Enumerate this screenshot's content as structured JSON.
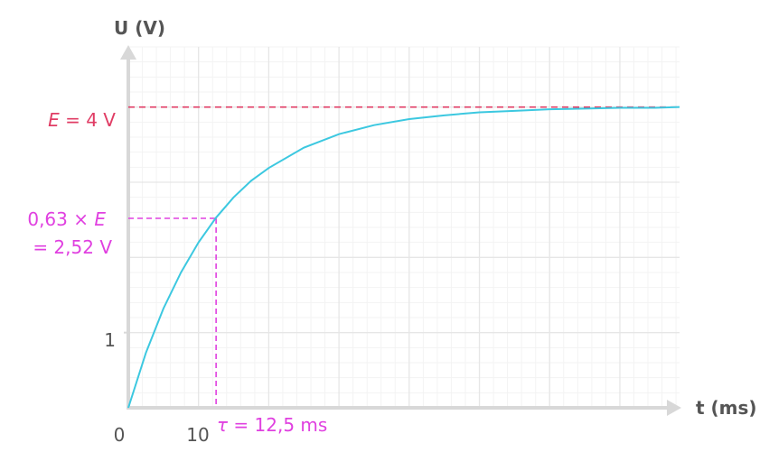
{
  "chart_data": {
    "type": "line",
    "y_axis_label": "U (V)",
    "x_axis_label": "t (ms)",
    "y_ticks": [
      {
        "value": 1,
        "label": "1"
      }
    ],
    "x_ticks": [
      {
        "value": 0,
        "label": "0"
      },
      {
        "value": 10,
        "label": "10"
      }
    ],
    "xlim": [
      0,
      78.5
    ],
    "ylim": [
      0,
      4.8
    ],
    "grid": true,
    "series": [
      {
        "color": "#3cc8e0",
        "x": [
          0,
          2.5,
          5,
          7.5,
          10,
          12.5,
          15,
          17.5,
          20,
          25,
          30,
          35,
          40,
          45,
          50,
          55,
          60,
          65,
          70,
          75,
          78.5
        ],
        "y": [
          0,
          0.73,
          1.32,
          1.8,
          2.2,
          2.53,
          2.8,
          3.02,
          3.19,
          3.46,
          3.64,
          3.76,
          3.84,
          3.89,
          3.93,
          3.95,
          3.97,
          3.98,
          3.99,
          3.99,
          4.0
        ]
      }
    ],
    "annotations": {
      "asymptote": {
        "value": 4,
        "label_italic": "E",
        "label_rest": " = 4 V",
        "color": "#e03c64"
      },
      "tau_point": {
        "x": 12.5,
        "y": 2.52,
        "y_label_line1": "0,63 × ",
        "y_label_line1_italic": "E",
        "y_label_line2": "= 2,52 V",
        "x_label_symbol": "τ",
        "x_label_rest": " = 12,5 ms",
        "color": "#e040e0"
      }
    },
    "colors": {
      "axis": "#d8d8d8",
      "grid_major": "#e6e6e6",
      "grid_minor": "#f3f3f3",
      "text": "#555555"
    }
  }
}
